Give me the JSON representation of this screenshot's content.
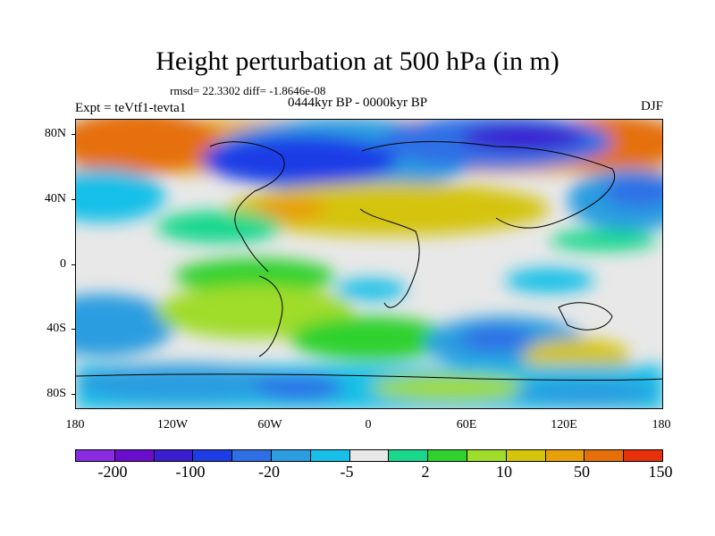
{
  "title": "Height perturbation at 500 hPa (in m)",
  "stats_line": "rmsd= 22.3302 diff= -1.8646e-08",
  "period_line": "0444kyr BP - 0000kyr BP",
  "experiment_label": "Expt = teVtf1-tevta1",
  "season_label": "DJF",
  "y_axis_ticks": [
    "80N",
    "40N",
    "0",
    "40S",
    "80S"
  ],
  "x_axis_ticks": [
    "180",
    "120W",
    "60W",
    "0",
    "60E",
    "120E",
    "180"
  ],
  "colorbar": {
    "colors": [
      "#8a2be2",
      "#6a0dcd",
      "#3a1ed0",
      "#1e3ce6",
      "#2f6fe6",
      "#2c9de0",
      "#16c0e8",
      "#e8e8e8",
      "#19d88c",
      "#2fd12f",
      "#a0dc2a",
      "#d4c40a",
      "#e8a00a",
      "#e5700a",
      "#e8300a"
    ],
    "labels": [
      "-200",
      "-100",
      "-20",
      "-5",
      "2",
      "10",
      "50",
      "150"
    ]
  }
}
